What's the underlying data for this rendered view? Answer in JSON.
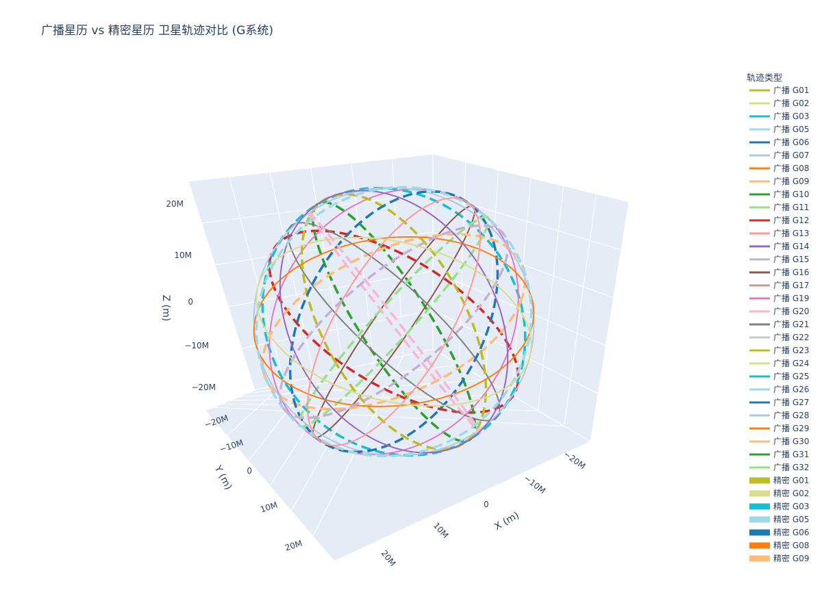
{
  "chart_data": {
    "type": "line",
    "title": "广播星历 vs 精密星历 卫星轨迹对比 (G系统)",
    "scene": "3d",
    "axes": {
      "x": {
        "label": "X (m)",
        "ticks": [
          "20M",
          "10M",
          "0",
          "−10M",
          "−20M"
        ]
      },
      "y": {
        "label": "Y (m)",
        "ticks": [
          "−20M",
          "−10M",
          "0",
          "10M",
          "20M"
        ]
      },
      "z": {
        "label": "Z (m)",
        "ticks": [
          "20M",
          "10M",
          "0",
          "−10M",
          "−20M"
        ]
      }
    },
    "legend": {
      "title": "轨迹类型",
      "position": "right",
      "broadcast_style": "solid",
      "precise_style": "dashed",
      "entries": [
        {
          "name": "广播 G01",
          "color": "#bcbd22",
          "kind": "broadcast"
        },
        {
          "name": "广播 G02",
          "color": "#dbdb8d",
          "kind": "broadcast"
        },
        {
          "name": "广播 G03",
          "color": "#17becf",
          "kind": "broadcast"
        },
        {
          "name": "广播 G05",
          "color": "#9edae5",
          "kind": "broadcast"
        },
        {
          "name": "广播 G06",
          "color": "#1f77b4",
          "kind": "broadcast"
        },
        {
          "name": "广播 G07",
          "color": "#aec7e8",
          "kind": "broadcast"
        },
        {
          "name": "广播 G08",
          "color": "#ff7f0e",
          "kind": "broadcast"
        },
        {
          "name": "广播 G09",
          "color": "#ffbb78",
          "kind": "broadcast"
        },
        {
          "name": "广播 G10",
          "color": "#2ca02c",
          "kind": "broadcast"
        },
        {
          "name": "广播 G11",
          "color": "#98df8a",
          "kind": "broadcast"
        },
        {
          "name": "广播 G12",
          "color": "#d62728",
          "kind": "broadcast"
        },
        {
          "name": "广播 G13",
          "color": "#ff9896",
          "kind": "broadcast"
        },
        {
          "name": "广播 G14",
          "color": "#9467bd",
          "kind": "broadcast"
        },
        {
          "name": "广播 G15",
          "color": "#c5b0d5",
          "kind": "broadcast"
        },
        {
          "name": "广播 G16",
          "color": "#8c564b",
          "kind": "broadcast"
        },
        {
          "name": "广播 G17",
          "color": "#c49c94",
          "kind": "broadcast"
        },
        {
          "name": "广播 G19",
          "color": "#e377c2",
          "kind": "broadcast"
        },
        {
          "name": "广播 G20",
          "color": "#f7b6d2",
          "kind": "broadcast"
        },
        {
          "name": "广播 G21",
          "color": "#7f7f7f",
          "kind": "broadcast"
        },
        {
          "name": "广播 G22",
          "color": "#c7c7c7",
          "kind": "broadcast"
        },
        {
          "name": "广播 G23",
          "color": "#bcbd22",
          "kind": "broadcast"
        },
        {
          "name": "广播 G24",
          "color": "#dbdb8d",
          "kind": "broadcast"
        },
        {
          "name": "广播 G25",
          "color": "#17becf",
          "kind": "broadcast"
        },
        {
          "name": "广播 G26",
          "color": "#9edae5",
          "kind": "broadcast"
        },
        {
          "name": "广播 G27",
          "color": "#1f77b4",
          "kind": "broadcast"
        },
        {
          "name": "广播 G28",
          "color": "#aec7e8",
          "kind": "broadcast"
        },
        {
          "name": "广播 G29",
          "color": "#ff7f0e",
          "kind": "broadcast"
        },
        {
          "name": "广播 G30",
          "color": "#ffbb78",
          "kind": "broadcast"
        },
        {
          "name": "广播 G31",
          "color": "#2ca02c",
          "kind": "broadcast"
        },
        {
          "name": "广播 G32",
          "color": "#98df8a",
          "kind": "broadcast"
        },
        {
          "name": "精密 G01",
          "color": "#bcbd22",
          "kind": "precise"
        },
        {
          "name": "精密 G02",
          "color": "#dbdb8d",
          "kind": "precise"
        },
        {
          "name": "精密 G03",
          "color": "#17becf",
          "kind": "precise"
        },
        {
          "name": "精密 G05",
          "color": "#9edae5",
          "kind": "precise"
        },
        {
          "name": "精密 G06",
          "color": "#1f77b4",
          "kind": "precise"
        },
        {
          "name": "精密 G08",
          "color": "#ff7f0e",
          "kind": "precise"
        },
        {
          "name": "精密 G09",
          "color": "#ffbb78",
          "kind": "precise"
        }
      ]
    },
    "orbits": [
      {
        "color": "#d62728",
        "incl": 55,
        "raan": 0,
        "style": "dashed"
      },
      {
        "color": "#2ca02c",
        "incl": 55,
        "raan": 60,
        "style": "dashed"
      },
      {
        "color": "#17becf",
        "incl": 55,
        "raan": 120,
        "style": "dashed"
      },
      {
        "color": "#e377c2",
        "incl": 55,
        "raan": 180,
        "style": "solid"
      },
      {
        "color": "#8c564b",
        "incl": 55,
        "raan": 240,
        "style": "solid"
      },
      {
        "color": "#ffbb78",
        "incl": 55,
        "raan": 300,
        "style": "dashed"
      },
      {
        "color": "#7f7f7f",
        "incl": 54,
        "raan": 20,
        "style": "solid"
      },
      {
        "color": "#bcbd22",
        "incl": 56,
        "raan": 80,
        "style": "dashed"
      },
      {
        "color": "#aec7e8",
        "incl": 54,
        "raan": 140,
        "style": "solid"
      },
      {
        "color": "#1f77b4",
        "incl": 56,
        "raan": 200,
        "style": "dashed"
      },
      {
        "color": "#98df8a",
        "incl": 54,
        "raan": 260,
        "style": "dashed"
      },
      {
        "color": "#ff7f0e",
        "incl": 56,
        "raan": 320,
        "style": "solid"
      },
      {
        "color": "#f7b6d2",
        "incl": 55,
        "raan": 40,
        "style": "dashed"
      },
      {
        "color": "#9467bd",
        "incl": 55,
        "raan": 100,
        "style": "solid"
      },
      {
        "color": "#9edae5",
        "incl": 55,
        "raan": 160,
        "style": "dashed"
      },
      {
        "color": "#ff9896",
        "incl": 55,
        "raan": 220,
        "style": "solid"
      },
      {
        "color": "#c5b0d5",
        "incl": 55,
        "raan": 280,
        "style": "dashed"
      },
      {
        "color": "#dbdb8d",
        "incl": 55,
        "raan": 340,
        "style": "solid"
      }
    ]
  }
}
